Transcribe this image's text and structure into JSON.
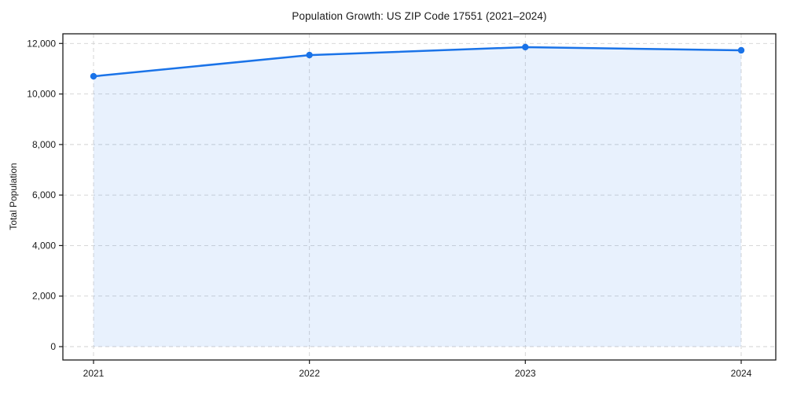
{
  "figure": {
    "title": "Population Growth: US ZIP Code 17551 (2021–2024)"
  },
  "chart_data": {
    "type": "line",
    "title": "Population Growth: US ZIP Code 17551 (2021–2024)",
    "categories": [
      "2021",
      "2022",
      "2023",
      "2024"
    ],
    "series": [
      {
        "name": "Total Population",
        "values": [
          10700,
          11540,
          11855,
          11730
        ]
      }
    ],
    "xlabel": "",
    "ylabel": "Total Population",
    "ylim": [
      0,
      12000
    ],
    "yticks": [
      0,
      2000,
      4000,
      6000,
      8000,
      10000,
      12000
    ],
    "ytick_labels": [
      "0",
      "2,000",
      "4,000",
      "6,000",
      "8,000",
      "10,000",
      "12,000"
    ],
    "grid": true,
    "grid_style": "dashed",
    "legend": false,
    "marker": "circle",
    "area_fill": true,
    "colors": {
      "line": "#1a73e8",
      "marker": "#1a73e8",
      "fill": "rgba(26,115,232,0.10)",
      "grid": "#d2d2d2",
      "axis": "#1a1a1a",
      "text": "#1a1a1a"
    }
  }
}
